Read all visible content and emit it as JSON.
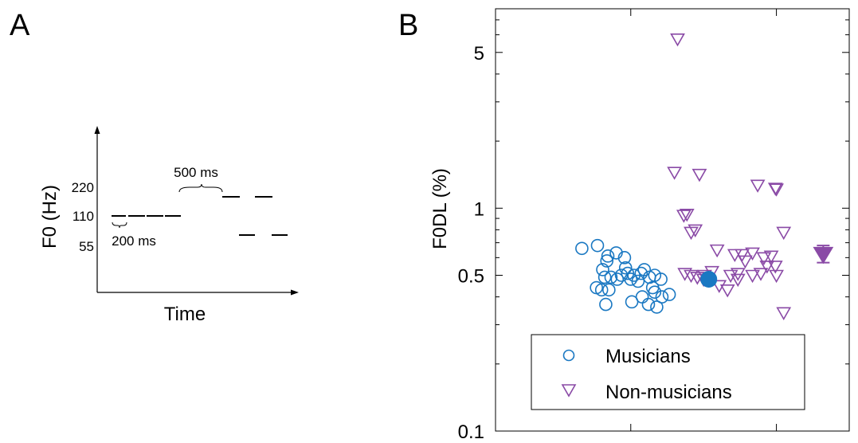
{
  "panel_a": {
    "letter": "A",
    "ylabel": "F0 (Hz)",
    "xlabel": "Time",
    "ticks": [
      "220",
      "110",
      "55"
    ],
    "annot_long": "500 ms",
    "annot_short": "200 ms"
  },
  "panel_b": {
    "letter": "B"
  },
  "colors": {
    "musicians": "#1a78c2",
    "non_musicians": "#8a4aa6"
  },
  "chart_data": {
    "type": "scatter",
    "ylabel": "F0DL (%)",
    "yscale": "log",
    "ylim": [
      0.1,
      8
    ],
    "yticks": [
      0.1,
      0.5,
      1,
      5
    ],
    "ytick_labels": [
      "0.1",
      "0.5",
      "1",
      "5"
    ],
    "grid": false,
    "legend": {
      "position": "bottom",
      "entries": [
        "Musicians",
        "Non-musicians"
      ]
    },
    "series": [
      {
        "name": "Musicians",
        "marker": "open-circle",
        "x": [
          1.03,
          1.18,
          1.27,
          1.44,
          1.57,
          1.73,
          1.87,
          1.36,
          1.28,
          1.45,
          1.63,
          1.23,
          1.47,
          1.6,
          1.41,
          1.53,
          1.25,
          1.31,
          1.37,
          1.5,
          1.68,
          1.73,
          1.79,
          1.17,
          1.22,
          1.29,
          1.71,
          1.61,
          1.8,
          1.26,
          1.51,
          1.67,
          1.75
        ],
        "y": [
          0.66,
          0.68,
          0.58,
          0.6,
          0.47,
          0.42,
          0.41,
          0.63,
          0.61,
          0.54,
          0.53,
          0.53,
          0.51,
          0.51,
          0.5,
          0.5,
          0.49,
          0.49,
          0.48,
          0.48,
          0.49,
          0.5,
          0.48,
          0.44,
          0.43,
          0.43,
          0.44,
          0.4,
          0.4,
          0.37,
          0.38,
          0.37,
          0.36
        ],
        "summary": {
          "x": 2.25,
          "y": 0.48,
          "marker": "filled-circle"
        }
      },
      {
        "name": "Non-musicians",
        "marker": "open-triangle-down",
        "x": [
          1.95,
          1.92,
          2.16,
          2.72,
          2.89,
          2.9,
          2.01,
          2.04,
          2.08,
          2.12,
          2.97,
          2.33,
          2.5,
          2.57,
          2.67,
          2.78,
          2.85,
          2.6,
          2.81,
          2.89,
          2.02,
          2.08,
          2.14,
          2.21,
          2.28,
          2.46,
          2.53,
          2.75,
          2.67,
          2.9,
          2.2,
          2.53,
          2.35,
          2.43,
          2.97
        ],
        "y": [
          5.75,
          1.45,
          1.42,
          1.27,
          1.23,
          1.22,
          0.93,
          0.94,
          0.78,
          0.8,
          0.78,
          0.65,
          0.62,
          0.62,
          0.63,
          0.6,
          0.61,
          0.58,
          0.55,
          0.55,
          0.51,
          0.5,
          0.49,
          0.5,
          0.52,
          0.5,
          0.51,
          0.51,
          0.5,
          0.5,
          0.48,
          0.48,
          0.45,
          0.43,
          0.34
        ],
        "summary": {
          "x": 3.35,
          "y": 0.62,
          "error_low": 0.57,
          "error_high": 0.68,
          "marker": "filled-triangle-down"
        }
      }
    ]
  }
}
